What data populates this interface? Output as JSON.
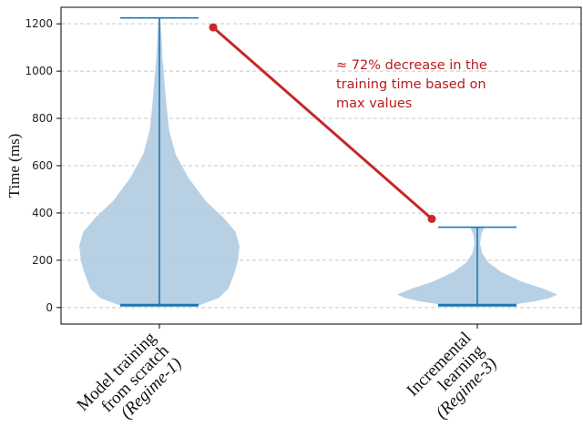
{
  "chart_data": {
    "type": "violin",
    "ylabel": "Time (ms)",
    "ylim": [
      -70,
      1270
    ],
    "yticks": [
      0,
      200,
      400,
      600,
      800,
      1000,
      1200
    ],
    "grid": true,
    "colors": {
      "violin_fill": "#b3cde3",
      "violin_line": "#1f77b4",
      "annotation": "#c62828"
    },
    "categories": [
      {
        "lines": [
          "Model training",
          "from scratch"
        ],
        "tag": "(Regime-1)"
      },
      {
        "lines": [
          "Incremental",
          "learning"
        ],
        "tag": "(Regime-3)"
      }
    ],
    "series": [
      {
        "min": 10,
        "max": 1225,
        "density": [
          [
            10,
            0.5
          ],
          [
            40,
            0.74
          ],
          [
            80,
            0.86
          ],
          [
            150,
            0.94
          ],
          [
            200,
            0.98
          ],
          [
            260,
            1.0
          ],
          [
            320,
            0.95
          ],
          [
            380,
            0.8
          ],
          [
            450,
            0.58
          ],
          [
            550,
            0.36
          ],
          [
            650,
            0.2
          ],
          [
            750,
            0.12
          ],
          [
            850,
            0.09
          ],
          [
            950,
            0.065
          ],
          [
            1050,
            0.04
          ],
          [
            1150,
            0.025
          ],
          [
            1225,
            0.01
          ]
        ]
      },
      {
        "min": 10,
        "max": 340,
        "density": [
          [
            10,
            0.4
          ],
          [
            25,
            0.7
          ],
          [
            40,
            0.9
          ],
          [
            55,
            1.0
          ],
          [
            80,
            0.82
          ],
          [
            110,
            0.55
          ],
          [
            150,
            0.3
          ],
          [
            190,
            0.14
          ],
          [
            230,
            0.06
          ],
          [
            270,
            0.035
          ],
          [
            310,
            0.05
          ],
          [
            340,
            0.09
          ]
        ]
      }
    ],
    "annotation": {
      "text_lines": [
        "≈ 72% decrease in the",
        "training time based on",
        "max values"
      ],
      "from_value": 1185,
      "to_value": 375
    }
  }
}
